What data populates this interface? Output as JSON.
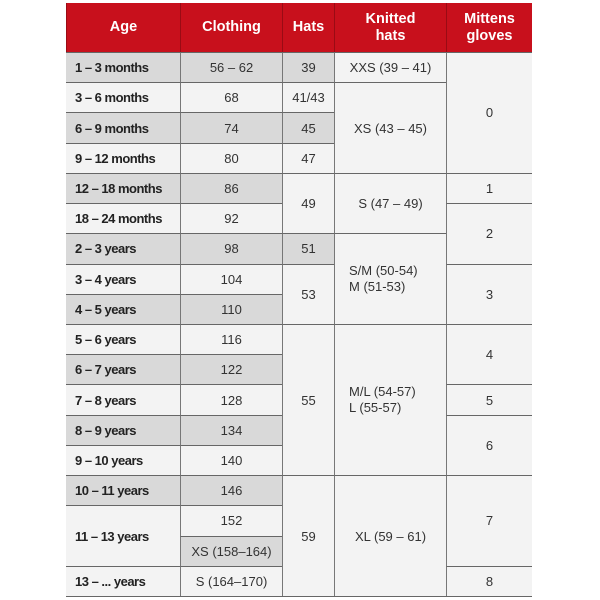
{
  "header": {
    "age": "Age",
    "clothing": "Clothing",
    "hats": "Hats",
    "knitted": "Knitted\nhats",
    "mittens": "Mittens\ngloves"
  },
  "ages": [
    "1 – 3 months",
    "3 – 6 months",
    "6 – 9 months",
    "9 – 12 months",
    "12 – 18 months",
    "18 – 24 months",
    "2 – 3 years",
    "3 – 4 years",
    "4 – 5 years",
    "5 – 6 years",
    "6 – 7 years",
    "7 – 8 years",
    "8 – 9 years",
    "9 – 10 years",
    "10 – 11 years",
    "11 – 13 years",
    "13 – ... years"
  ],
  "clothing": [
    "56 – 62",
    "68",
    "74",
    "80",
    "86",
    "92",
    "98",
    "104",
    "110",
    "116",
    "122",
    "128",
    "134",
    "140",
    "146",
    "152",
    "XS (158–164)",
    "S (164–170)"
  ],
  "hats": [
    "39",
    "41/43",
    "45",
    "47",
    "49",
    "51",
    "53",
    "55",
    "59"
  ],
  "knitted": [
    "XXS (39 – 41)",
    "XS (43 – 45)",
    "S (47 – 49)",
    "S/M (50-54)\nM (51-53)",
    "M/L (54-57)\nL (55-57)",
    "XL (59 – 61)"
  ],
  "mittens": [
    "0",
    "1",
    "2",
    "3",
    "4",
    "5",
    "6",
    "7",
    "8"
  ],
  "colors": {
    "header": "#c8101c",
    "shaded": "#d9d9d9",
    "light": "#f3f3f3"
  }
}
